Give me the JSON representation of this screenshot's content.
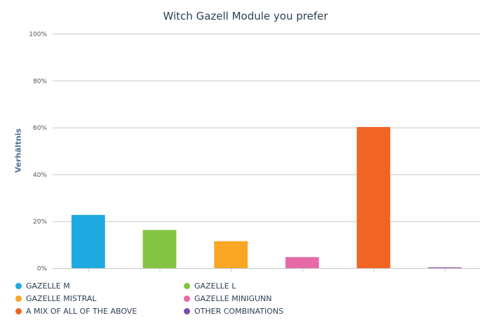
{
  "chart_data": {
    "type": "bar",
    "title": "Witch Gazell Module you prefer",
    "ylabel": "Verhältnis",
    "ylim": [
      0,
      100
    ],
    "yticks": [
      "0%",
      "20%",
      "40%",
      "60%",
      "80%",
      "100%"
    ],
    "categories": [
      "GAZELLE M",
      "GAZELLE L",
      "GAZELLE MISTRAL",
      "GAZELLE MINIGUNN",
      "A MIX OF ALL OF THE ABOVE",
      "OTHER COMBINATIONS"
    ],
    "values": [
      22.7,
      16.3,
      11.5,
      4.7,
      60.2,
      0.3
    ],
    "colors": [
      "#1fa9e1",
      "#84c442",
      "#f8a623",
      "#e56aa7",
      "#f06524",
      "#7b4ea3"
    ],
    "grid": true,
    "legend_position": "bottom"
  }
}
